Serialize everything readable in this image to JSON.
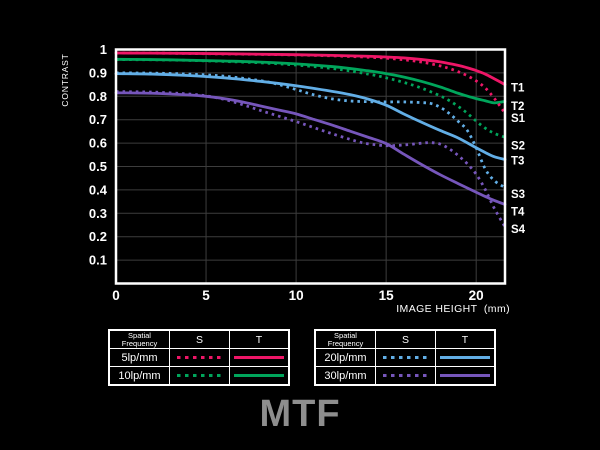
{
  "title": "MTF",
  "title_color": "#8e8e8e",
  "background": "#000000",
  "chart": {
    "frame_color": "#ffffff",
    "grid_color": "#3d3d3d",
    "text_color": "#ffffff"
  },
  "chart_data": {
    "type": "line",
    "title": "MTF",
    "xlabel": "IMAGE HEIGHT  (mm)",
    "ylabel": "CONTRAST",
    "xlim": [
      0,
      21.6
    ],
    "ylim": [
      0,
      1
    ],
    "xticks": [
      0,
      5,
      10,
      15,
      20
    ],
    "yticks": [
      1,
      0.9,
      0.8,
      0.7,
      0.6,
      0.5,
      0.4,
      0.3,
      0.2,
      0.1
    ],
    "grid": true,
    "legend_position": "bottom-tables",
    "series": [
      {
        "id": "T1",
        "label": "T1",
        "frequency": "5lp/mm",
        "component": "T",
        "style": "solid",
        "color": "#ee1667",
        "label_y": 0.838,
        "x": [
          0,
          3,
          6,
          9,
          12,
          14,
          15,
          16,
          17,
          18,
          19,
          19.5,
          20,
          20.5,
          21,
          21.6
        ],
        "y": [
          0.985,
          0.984,
          0.982,
          0.979,
          0.975,
          0.971,
          0.968,
          0.964,
          0.957,
          0.947,
          0.932,
          0.922,
          0.91,
          0.895,
          0.875,
          0.85
        ]
      },
      {
        "id": "S1",
        "label": "S1",
        "frequency": "5lp/mm",
        "component": "S",
        "style": "dotted",
        "color": "#ee1667",
        "label_y": 0.708,
        "x": [
          0,
          3,
          6,
          9,
          12,
          14,
          15,
          16,
          17,
          18,
          18.5,
          19,
          19.5,
          20,
          20.5,
          21,
          21.6
        ],
        "y": [
          0.985,
          0.984,
          0.981,
          0.978,
          0.973,
          0.967,
          0.963,
          0.956,
          0.946,
          0.93,
          0.919,
          0.905,
          0.888,
          0.866,
          0.836,
          0.792,
          0.728
        ]
      },
      {
        "id": "T2",
        "label": "T2",
        "frequency": "10lp/mm",
        "component": "T",
        "style": "solid",
        "color": "#00a55b",
        "label_y": 0.758,
        "x": [
          0,
          3,
          6,
          9,
          12,
          14,
          15,
          16,
          17,
          18,
          19,
          19.5,
          20,
          20.5,
          21,
          21.6
        ],
        "y": [
          0.958,
          0.956,
          0.951,
          0.943,
          0.927,
          0.909,
          0.897,
          0.882,
          0.863,
          0.84,
          0.813,
          0.801,
          0.79,
          0.781,
          0.772,
          0.778
        ]
      },
      {
        "id": "S2",
        "label": "S2",
        "frequency": "10lp/mm",
        "component": "S",
        "style": "dotted",
        "color": "#00a55b",
        "label_y": 0.59,
        "x": [
          0,
          3,
          6,
          9,
          12,
          14,
          15,
          16,
          17,
          18,
          18.5,
          19,
          19.5,
          20,
          20.5,
          21,
          21.6
        ],
        "y": [
          0.957,
          0.955,
          0.949,
          0.939,
          0.919,
          0.895,
          0.879,
          0.859,
          0.834,
          0.802,
          0.782,
          0.757,
          0.728,
          0.694,
          0.664,
          0.642,
          0.625
        ]
      },
      {
        "id": "T3",
        "label": "T3",
        "frequency": "20lp/mm",
        "component": "T",
        "style": "solid",
        "color": "#62aee6",
        "label_y": 0.525,
        "x": [
          0,
          2,
          4,
          6,
          8,
          10,
          12,
          13,
          14,
          15,
          16,
          17,
          18,
          19,
          20,
          20.5,
          21,
          21.6
        ],
        "y": [
          0.897,
          0.895,
          0.889,
          0.879,
          0.864,
          0.845,
          0.821,
          0.807,
          0.788,
          0.762,
          0.724,
          0.688,
          0.654,
          0.622,
          0.58,
          0.56,
          0.542,
          0.53
        ]
      },
      {
        "id": "S3",
        "label": "S3",
        "frequency": "20lp/mm",
        "component": "S",
        "style": "dotted",
        "color": "#62aee6",
        "label_y": 0.382,
        "x": [
          0,
          2,
          4,
          6,
          8,
          9,
          10,
          11,
          12,
          13,
          14,
          15,
          16,
          17,
          17.5,
          18,
          18.5,
          19,
          19.5,
          20,
          20.5,
          21,
          21.6
        ],
        "y": [
          0.9,
          0.899,
          0.895,
          0.886,
          0.867,
          0.851,
          0.829,
          0.806,
          0.789,
          0.78,
          0.777,
          0.776,
          0.776,
          0.773,
          0.769,
          0.753,
          0.727,
          0.693,
          0.655,
          0.58,
          0.49,
          0.44,
          0.41
        ]
      },
      {
        "id": "T4",
        "label": "T4",
        "frequency": "30lp/mm",
        "component": "T",
        "style": "solid",
        "color": "#7656bb",
        "label_y": 0.308,
        "x": [
          0,
          2,
          4,
          5,
          6,
          7,
          8,
          9,
          10,
          11,
          12,
          13,
          14,
          15,
          16,
          17,
          18,
          19,
          20,
          20.5,
          21,
          21.6
        ],
        "y": [
          0.815,
          0.813,
          0.806,
          0.8,
          0.79,
          0.776,
          0.759,
          0.742,
          0.725,
          0.701,
          0.677,
          0.651,
          0.625,
          0.598,
          0.552,
          0.507,
          0.465,
          0.427,
          0.39,
          0.372,
          0.355,
          0.338
        ]
      },
      {
        "id": "S4",
        "label": "S4",
        "frequency": "30lp/mm",
        "component": "S",
        "style": "dotted",
        "color": "#7656bb",
        "label_y": 0.232,
        "x": [
          0,
          2,
          4,
          5,
          6,
          7,
          8,
          9,
          10,
          11,
          12,
          13,
          13.5,
          14,
          15,
          16,
          17,
          17.5,
          18,
          18.5,
          19,
          19.5,
          20,
          20.5,
          21,
          21.6
        ],
        "y": [
          0.82,
          0.818,
          0.81,
          0.802,
          0.787,
          0.765,
          0.74,
          0.716,
          0.692,
          0.666,
          0.64,
          0.616,
          0.605,
          0.597,
          0.589,
          0.592,
          0.6,
          0.602,
          0.596,
          0.576,
          0.547,
          0.512,
          0.467,
          0.402,
          0.322,
          0.242
        ]
      }
    ]
  },
  "legend": {
    "header_line1": "Spatial",
    "header_line2": "Frequency",
    "col_s": "S",
    "col_t": "T",
    "tables": [
      {
        "rows": [
          {
            "freq": "5lp/mm",
            "color": "#ee1667"
          },
          {
            "freq": "10lp/mm",
            "color": "#00a55b"
          }
        ]
      },
      {
        "rows": [
          {
            "freq": "20lp/mm",
            "color": "#62aee6"
          },
          {
            "freq": "30lp/mm",
            "color": "#7656bb"
          }
        ]
      }
    ]
  }
}
